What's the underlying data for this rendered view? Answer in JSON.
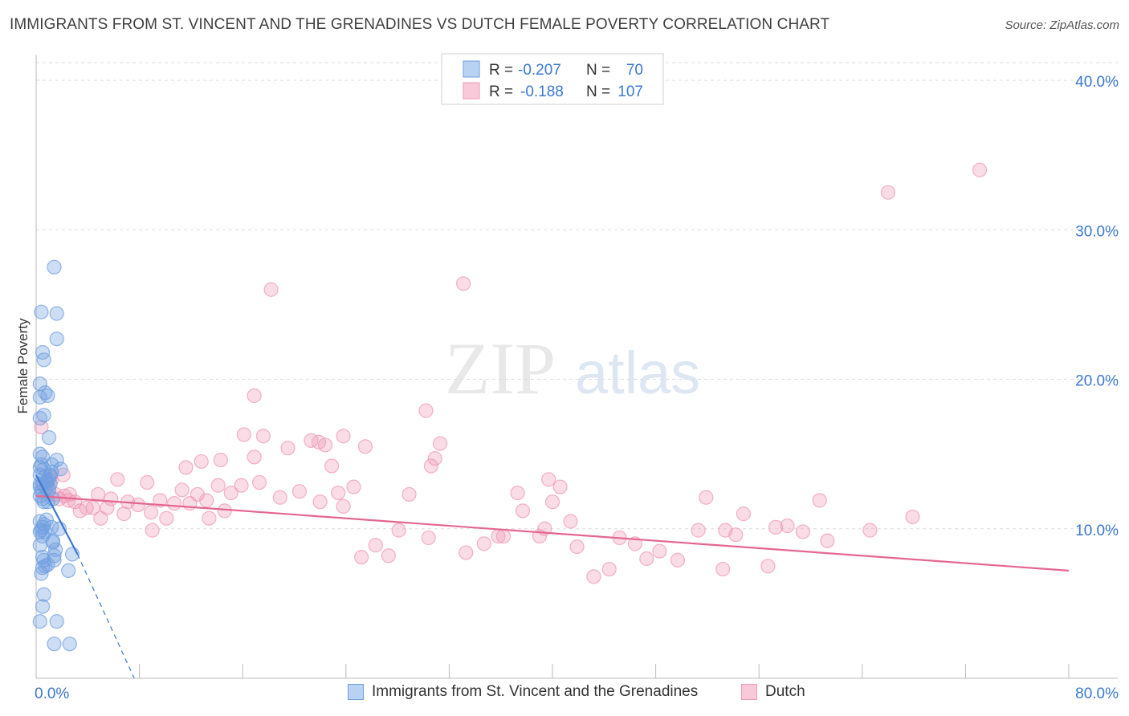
{
  "title": "IMMIGRANTS FROM ST. VINCENT AND THE GRENADINES VS DUTCH FEMALE POVERTY CORRELATION CHART",
  "source": "Source: ZipAtlas.com",
  "watermark": {
    "zip": "ZIP",
    "atlas": "atlas"
  },
  "colors": {
    "blue": "#6f9fe0",
    "blue_line": "#3c78d0",
    "pink": "#ef9ab6",
    "pink_line": "#e5678f",
    "axis_label": "#3c78d0"
  },
  "legend": {
    "rows": [
      {
        "r_label": "R = ",
        "r_value": "-0.207",
        "n_label": "N = ",
        "n_value": "70"
      },
      {
        "r_label": "R = ",
        "r_value": "-0.188",
        "n_label": "N = ",
        "n_value": "107"
      }
    ],
    "series": [
      "Immigrants from St. Vincent and the Grenadines",
      "Dutch"
    ]
  },
  "chart_data": {
    "type": "scatter",
    "title": "IMMIGRANTS FROM ST. VINCENT AND THE GRENADINES VS DUTCH FEMALE POVERTY CORRELATION CHART",
    "xlabel": "",
    "ylabel": "Female Poverty",
    "xlim": [
      0,
      80
    ],
    "ylim": [
      0,
      40
    ],
    "x_tick_labels": [
      "0.0%",
      "80.0%"
    ],
    "y_ticks": [
      10,
      20,
      30,
      40
    ],
    "y_tick_labels": [
      "10.0%",
      "20.0%",
      "30.0%",
      "40.0%"
    ],
    "grid": "horizontal dashed",
    "legend_position": "top-center",
    "series": [
      {
        "name": "Immigrants from St. Vincent and the Grenadines",
        "r": -0.207,
        "n": 70,
        "trend_solid": [
          [
            0,
            13.6
          ],
          [
            3.2,
            8.3
          ]
        ],
        "trend_dashed": [
          [
            3.2,
            8.3
          ],
          [
            7.6,
            0
          ]
        ],
        "x": [
          1.4,
          0.4,
          1.6,
          1.6,
          0.5,
          0.6,
          0.3,
          0.7,
          0.9,
          0.3,
          0.6,
          0.3,
          1.0,
          1.6,
          1.9,
          0.3,
          0.5,
          1.2,
          0.6,
          1.1,
          0.3,
          1.0,
          0.8,
          1.1,
          0.3,
          0.3,
          0.8,
          0.4,
          0.3,
          0.5,
          1.3,
          0.6,
          0.9,
          1.2,
          0.3,
          0.6,
          0.5,
          1.8,
          0.4,
          0.7,
          1.3,
          0.3,
          2.8,
          1.4,
          0.5,
          0.6,
          2.5,
          0.5,
          0.9,
          1.5,
          0.6,
          0.5,
          0.3,
          1.6,
          1.4,
          2.6,
          0.8,
          1.2,
          0.3,
          1.3,
          0.4,
          0.7,
          1.4,
          1.0,
          0.5,
          0.7,
          0.4,
          0.3,
          0.5,
          0.8
        ],
        "y": [
          27.5,
          24.5,
          24.4,
          22.7,
          21.8,
          21.3,
          19.7,
          19.1,
          18.9,
          18.8,
          17.6,
          17.4,
          16.1,
          14.6,
          14.0,
          15.0,
          14.8,
          14.3,
          14.0,
          13.6,
          13.6,
          13.3,
          13.1,
          13.0,
          13.0,
          12.8,
          12.7,
          12.5,
          12.2,
          12.0,
          12.0,
          11.8,
          11.8,
          13.8,
          10.5,
          10.3,
          10.1,
          10.0,
          9.9,
          9.8,
          9.1,
          8.9,
          8.3,
          8.2,
          8.1,
          7.9,
          7.2,
          7.4,
          7.6,
          8.6,
          5.6,
          4.8,
          3.8,
          3.8,
          2.3,
          2.3,
          10.6,
          10.1,
          9.8,
          9.2,
          7.0,
          7.5,
          7.9,
          12.6,
          13.0,
          13.5,
          14.3,
          14.1,
          9.5,
          13.2
        ]
      },
      {
        "name": "Dutch",
        "r": -0.188,
        "n": 107,
        "trend_solid": [
          [
            0,
            12.2
          ],
          [
            80,
            7.2
          ]
        ],
        "x": [
          73.1,
          66.0,
          16.9,
          33.1,
          18.2,
          30.6,
          30.2,
          11.3,
          28.9,
          39.7,
          37.3,
          22.0,
          23.8,
          25.5,
          31.3,
          15.9,
          30.9,
          37.7,
          9.6,
          10.7,
          11.9,
          12.5,
          14.6,
          13.2,
          14.1,
          18.9,
          17.3,
          15.1,
          13.4,
          10.1,
          7.9,
          6.8,
          4.8,
          5.8,
          5.5,
          4.4,
          3.4,
          3.0,
          2.6,
          2.5,
          2.1,
          1.8,
          1.5,
          1.2,
          1.0,
          0.6,
          0.4,
          1.1,
          2.2,
          3.9,
          5.0,
          6.3,
          7.1,
          8.6,
          8.9,
          9.0,
          11.6,
          12.8,
          14.3,
          16.1,
          16.9,
          17.6,
          19.5,
          20.4,
          21.3,
          21.9,
          22.4,
          22.9,
          23.4,
          23.8,
          24.6,
          25.2,
          26.3,
          27.3,
          28.1,
          30.4,
          33.3,
          34.7,
          36.2,
          39.0,
          39.4,
          40.0,
          40.6,
          41.4,
          41.9,
          43.2,
          44.4,
          45.2,
          46.4,
          47.3,
          48.3,
          49.7,
          51.3,
          51.9,
          53.4,
          54.2,
          54.8,
          57.3,
          58.2,
          59.4,
          60.7,
          61.3,
          64.6,
          67.9,
          53.2,
          56.7,
          35.8
        ],
        "y": [
          34.0,
          32.5,
          18.9,
          26.4,
          26.0,
          14.2,
          17.9,
          12.6,
          12.3,
          13.3,
          12.4,
          11.8,
          16.2,
          15.5,
          15.7,
          12.9,
          14.7,
          11.2,
          11.9,
          11.7,
          11.7,
          12.3,
          11.2,
          11.9,
          12.9,
          12.1,
          13.1,
          12.4,
          10.7,
          10.7,
          11.6,
          11.0,
          12.3,
          12.0,
          11.4,
          11.4,
          11.2,
          11.8,
          12.3,
          11.9,
          13.6,
          12.0,
          12.3,
          13.3,
          12.7,
          12.9,
          16.8,
          13.5,
          12.2,
          11.4,
          10.7,
          13.3,
          11.8,
          13.1,
          11.1,
          9.9,
          14.1,
          14.5,
          14.6,
          16.3,
          14.8,
          16.2,
          15.4,
          12.5,
          15.9,
          15.8,
          15.6,
          14.2,
          12.4,
          11.5,
          12.8,
          8.1,
          8.9,
          8.2,
          9.9,
          9.4,
          8.4,
          9.0,
          9.5,
          9.5,
          10.0,
          11.8,
          12.8,
          10.5,
          8.8,
          6.8,
          7.3,
          9.4,
          9.0,
          8.0,
          8.5,
          7.9,
          9.9,
          12.1,
          9.9,
          9.6,
          11.0,
          10.1,
          10.2,
          9.8,
          11.9,
          9.2,
          9.9,
          10.8,
          7.3,
          7.5,
          9.5
        ]
      }
    ]
  }
}
